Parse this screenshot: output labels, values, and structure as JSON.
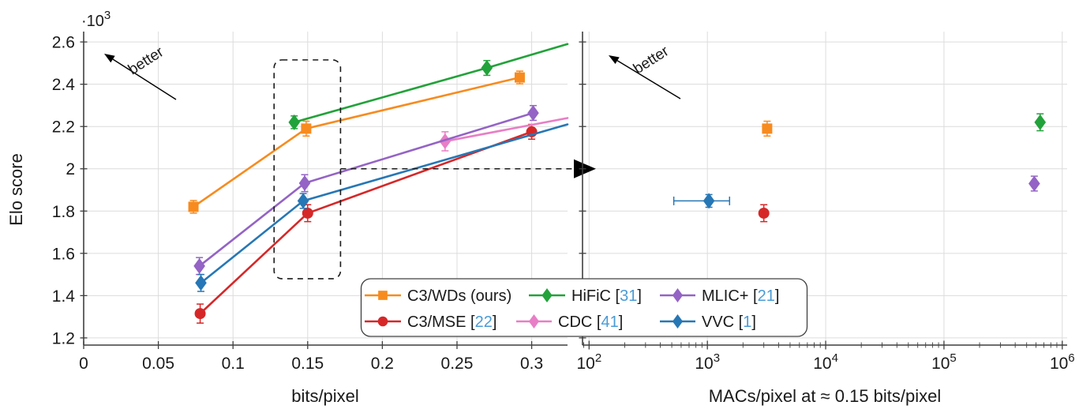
{
  "better_label": "better",
  "colors": {
    "citation": "#4a9bd5",
    "grid": "#dcdcdc",
    "spine": "#3f3f3f",
    "text": "#1a1a1a",
    "annotation": "#1a1a1a"
  },
  "series_defs": {
    "c3wds": {
      "label": "C3/WDs",
      "suffix": " (ours)",
      "ref": null,
      "color": "#f78b1f",
      "marker": "square"
    },
    "c3mse": {
      "label": "C3/MSE",
      "suffix": "",
      "ref": "22",
      "color": "#d62728",
      "marker": "circle"
    },
    "hific": {
      "label": "HiFiC",
      "suffix": "",
      "ref": "31",
      "color": "#22a23a",
      "marker": "diamond"
    },
    "cdc": {
      "label": "CDC",
      "suffix": "",
      "ref": "41",
      "color": "#e87ec6",
      "marker": "diamond"
    },
    "mlic": {
      "label": "MLIC+",
      "suffix": "",
      "ref": "21",
      "color": "#9463c5",
      "marker": "diamond"
    },
    "vvc": {
      "label": "VVC",
      "suffix": "",
      "ref": "1",
      "color": "#2677b5",
      "marker": "diamond"
    }
  },
  "legend": {
    "order": [
      "c3wds",
      "hific",
      "mlic",
      "c3mse",
      "cdc",
      "vvc"
    ]
  },
  "y_axis": {
    "label": "Elo score",
    "exponent_base": "·10",
    "exponent_sup": "3",
    "unit_note": "Elo values are in thousands (×10³)",
    "ticks": [
      1.2,
      1.4,
      1.6,
      1.8,
      2.0,
      2.2,
      2.4,
      2.6
    ],
    "tick_labels": [
      "1.2",
      "1.4",
      "1.6",
      "1.8",
      "2",
      "2.2",
      "2.4",
      "2.6"
    ]
  },
  "chart_data": [
    {
      "type": "line",
      "panel": "left",
      "xlabel": "bits/pixel",
      "ylabel": "Elo score",
      "xlim": [
        0,
        0.324
      ],
      "ylim": [
        1.166,
        2.649
      ],
      "grid": true,
      "x_ticks": [
        0,
        0.05,
        0.1,
        0.15,
        0.2,
        0.25,
        0.3
      ],
      "x_tick_labels": [
        "0",
        "0.05",
        "0.1",
        "0.15",
        "0.2",
        "0.25",
        "0.3"
      ],
      "series": [
        {
          "id": "c3wds",
          "x": [
            0.0735,
            0.149,
            0.292
          ],
          "y": [
            1.82,
            2.19,
            2.432
          ],
          "yerr": [
            0.03,
            0.035,
            0.03
          ]
        },
        {
          "id": "c3mse",
          "x": [
            0.078,
            0.15,
            0.3
          ],
          "y": [
            1.315,
            1.79,
            2.175
          ],
          "yerr": [
            0.045,
            0.04,
            0.035
          ]
        },
        {
          "id": "hific",
          "x": [
            0.141,
            0.27
          ],
          "y": [
            2.22,
            2.477
          ],
          "yerr": [
            0.03,
            0.035
          ],
          "line_to_edge": {
            "x": 0.324,
            "y": 2.59
          }
        },
        {
          "id": "cdc",
          "x": [
            0.242
          ],
          "y": [
            2.13
          ],
          "yerr": [
            0.045
          ],
          "line_to_edge": {
            "x": 0.324,
            "y": 2.24
          }
        },
        {
          "id": "mlic",
          "x": [
            0.0775,
            0.148,
            0.301
          ],
          "y": [
            1.54,
            1.932,
            2.264
          ],
          "yerr": [
            0.04,
            0.04,
            0.035
          ]
        },
        {
          "id": "vvc",
          "x": [
            0.0785,
            0.147
          ],
          "y": [
            1.46,
            1.848
          ],
          "yerr": [
            0.04,
            0.035
          ],
          "line_to_edge": {
            "x": 0.324,
            "y": 2.21
          }
        }
      ],
      "annotations": {
        "dashed_box": {
          "x": [
            0.1275,
            0.172
          ],
          "y": [
            1.48,
            2.515
          ]
        },
        "dashed_arrow": {
          "y": 2.0,
          "points_to": "right-panel"
        },
        "better_arrow": {
          "label": "better"
        }
      }
    },
    {
      "type": "scatter",
      "panel": "right",
      "xscale": "log",
      "xlabel": "MACs/pixel at ≈ 0.15 bits/pixel",
      "xlim": [
        88,
        1100000
      ],
      "grid": true,
      "x_ticks": [
        100,
        1000,
        10000,
        100000,
        1000000
      ],
      "x_tick_exponents": [
        "2",
        "3",
        "4",
        "5",
        "6"
      ],
      "points": [
        {
          "id": "c3wds",
          "x": 3200,
          "y": 2.19,
          "yerr": 0.035
        },
        {
          "id": "c3mse",
          "x": 3000,
          "y": 1.79,
          "yerr": 0.04
        },
        {
          "id": "vvc",
          "x": 1030,
          "y": 1.848,
          "yerr": 0.03,
          "xerr": [
            520,
            1540
          ]
        },
        {
          "id": "hific",
          "x": 650000,
          "y": 2.22,
          "yerr": 0.04
        },
        {
          "id": "mlic",
          "x": 580000,
          "y": 1.93,
          "yerr": 0.035
        }
      ],
      "annotations": {
        "incoming_arrow_y": 2.0,
        "better_arrow": {
          "label": "better"
        }
      }
    }
  ]
}
